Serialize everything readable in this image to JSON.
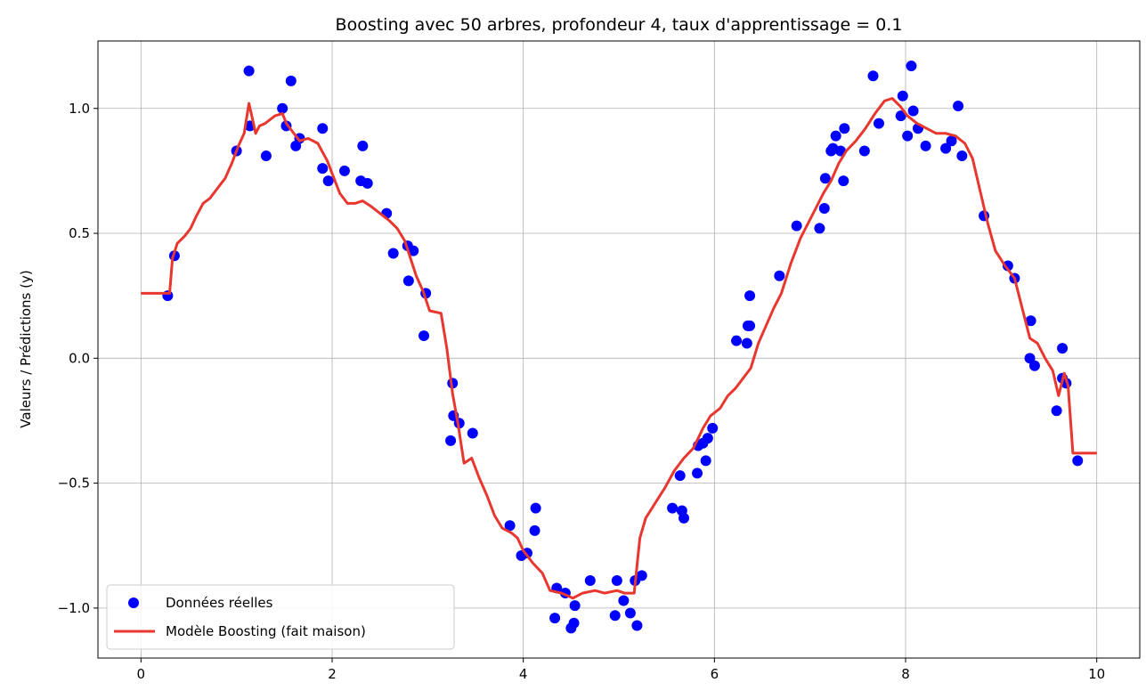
{
  "chart_data": {
    "type": "scatter",
    "title": "Boosting avec 50 arbres, profondeur 4, taux d'apprentissage = 0.1",
    "xlabel": "",
    "ylabel": "Valeurs / Prédictions (y)",
    "xlim": [
      -0.45,
      10.45
    ],
    "ylim": [
      -1.2,
      1.27
    ],
    "xticks": [
      0,
      2,
      4,
      6,
      8,
      10
    ],
    "xtick_labels": [
      "0",
      "2",
      "4",
      "6",
      "8",
      "10"
    ],
    "yticks": [
      -1.0,
      -0.5,
      0.0,
      0.5,
      1.0
    ],
    "ytick_labels": [
      "−1.0",
      "−0.5",
      "0.0",
      "0.5",
      "1.0"
    ],
    "grid": true,
    "legend_position": "lower-left",
    "series": [
      {
        "name": "Données réelles",
        "kind": "scatter",
        "color": "#0000ff",
        "points": [
          [
            0.28,
            0.25
          ],
          [
            0.35,
            0.41
          ],
          [
            1.0,
            0.83
          ],
          [
            1.13,
            1.15
          ],
          [
            1.14,
            0.93
          ],
          [
            1.31,
            0.81
          ],
          [
            1.48,
            1.0
          ],
          [
            1.52,
            0.93
          ],
          [
            1.57,
            1.11
          ],
          [
            1.62,
            0.85
          ],
          [
            1.66,
            0.88
          ],
          [
            1.9,
            0.92
          ],
          [
            1.9,
            0.76
          ],
          [
            1.96,
            0.71
          ],
          [
            2.13,
            0.75
          ],
          [
            2.3,
            0.71
          ],
          [
            2.32,
            0.85
          ],
          [
            2.37,
            0.7
          ],
          [
            2.57,
            0.58
          ],
          [
            2.64,
            0.42
          ],
          [
            2.79,
            0.45
          ],
          [
            2.8,
            0.31
          ],
          [
            2.85,
            0.43
          ],
          [
            2.96,
            0.09
          ],
          [
            2.98,
            0.26
          ],
          [
            3.24,
            -0.33
          ],
          [
            3.26,
            -0.1
          ],
          [
            3.27,
            -0.23
          ],
          [
            3.33,
            -0.26
          ],
          [
            3.47,
            -0.3
          ],
          [
            3.86,
            -0.67
          ],
          [
            3.98,
            -0.79
          ],
          [
            4.04,
            -0.78
          ],
          [
            4.12,
            -0.69
          ],
          [
            4.13,
            -0.6
          ],
          [
            4.33,
            -1.04
          ],
          [
            4.35,
            -0.92
          ],
          [
            4.44,
            -0.94
          ],
          [
            4.5,
            -1.08
          ],
          [
            4.53,
            -1.06
          ],
          [
            4.54,
            -0.99
          ],
          [
            4.7,
            -0.89
          ],
          [
            4.96,
            -1.03
          ],
          [
            4.98,
            -0.89
          ],
          [
            5.05,
            -0.97
          ],
          [
            5.12,
            -1.02
          ],
          [
            5.17,
            -0.89
          ],
          [
            5.19,
            -1.07
          ],
          [
            5.24,
            -0.87
          ],
          [
            5.56,
            -0.6
          ],
          [
            5.64,
            -0.47
          ],
          [
            5.66,
            -0.61
          ],
          [
            5.68,
            -0.64
          ],
          [
            5.82,
            -0.46
          ],
          [
            5.83,
            -0.35
          ],
          [
            5.88,
            -0.34
          ],
          [
            5.91,
            -0.41
          ],
          [
            5.93,
            -0.32
          ],
          [
            5.98,
            -0.28
          ],
          [
            6.23,
            0.07
          ],
          [
            6.34,
            0.06
          ],
          [
            6.35,
            0.13
          ],
          [
            6.37,
            0.25
          ],
          [
            6.37,
            0.13
          ],
          [
            6.68,
            0.33
          ],
          [
            6.86,
            0.53
          ],
          [
            7.1,
            0.52
          ],
          [
            7.15,
            0.6
          ],
          [
            7.16,
            0.72
          ],
          [
            7.22,
            0.83
          ],
          [
            7.24,
            0.84
          ],
          [
            7.27,
            0.89
          ],
          [
            7.32,
            0.83
          ],
          [
            7.35,
            0.71
          ],
          [
            7.36,
            0.92
          ],
          [
            7.57,
            0.83
          ],
          [
            7.66,
            1.13
          ],
          [
            7.72,
            0.94
          ],
          [
            7.95,
            0.97
          ],
          [
            7.97,
            1.05
          ],
          [
            8.02,
            0.89
          ],
          [
            8.06,
            1.17
          ],
          [
            8.08,
            0.99
          ],
          [
            8.13,
            0.92
          ],
          [
            8.21,
            0.85
          ],
          [
            8.42,
            0.84
          ],
          [
            8.48,
            0.87
          ],
          [
            8.55,
            1.01
          ],
          [
            8.59,
            0.81
          ],
          [
            8.82,
            0.57
          ],
          [
            9.07,
            0.37
          ],
          [
            9.14,
            0.32
          ],
          [
            9.3,
            0.0
          ],
          [
            9.31,
            0.15
          ],
          [
            9.35,
            -0.03
          ],
          [
            9.58,
            -0.21
          ],
          [
            9.64,
            0.04
          ],
          [
            9.64,
            -0.08
          ],
          [
            9.68,
            -0.1
          ],
          [
            9.8,
            -0.41
          ]
        ]
      },
      {
        "name": "Modèle Boosting (fait maison)",
        "kind": "line",
        "color": "#e8372f",
        "points": [
          [
            0.0,
            0.26
          ],
          [
            0.3,
            0.26
          ],
          [
            0.33,
            0.4
          ],
          [
            0.38,
            0.46
          ],
          [
            0.46,
            0.49
          ],
          [
            0.52,
            0.52
          ],
          [
            0.58,
            0.57
          ],
          [
            0.65,
            0.62
          ],
          [
            0.72,
            0.64
          ],
          [
            0.8,
            0.68
          ],
          [
            0.88,
            0.72
          ],
          [
            0.95,
            0.78
          ],
          [
            1.02,
            0.85
          ],
          [
            1.08,
            0.9
          ],
          [
            1.1,
            0.95
          ],
          [
            1.13,
            1.02
          ],
          [
            1.16,
            0.97
          ],
          [
            1.2,
            0.9
          ],
          [
            1.24,
            0.93
          ],
          [
            1.3,
            0.94
          ],
          [
            1.4,
            0.97
          ],
          [
            1.48,
            0.98
          ],
          [
            1.52,
            0.94
          ],
          [
            1.58,
            0.91
          ],
          [
            1.66,
            0.87
          ],
          [
            1.75,
            0.88
          ],
          [
            1.85,
            0.86
          ],
          [
            1.95,
            0.79
          ],
          [
            2.02,
            0.72
          ],
          [
            2.08,
            0.66
          ],
          [
            2.16,
            0.62
          ],
          [
            2.24,
            0.62
          ],
          [
            2.32,
            0.63
          ],
          [
            2.4,
            0.61
          ],
          [
            2.5,
            0.58
          ],
          [
            2.6,
            0.55
          ],
          [
            2.68,
            0.52
          ],
          [
            2.76,
            0.47
          ],
          [
            2.82,
            0.4
          ],
          [
            2.88,
            0.33
          ],
          [
            2.95,
            0.27
          ],
          [
            3.02,
            0.19
          ],
          [
            3.14,
            0.18
          ],
          [
            3.2,
            0.04
          ],
          [
            3.26,
            -0.14
          ],
          [
            3.32,
            -0.27
          ],
          [
            3.38,
            -0.42
          ],
          [
            3.46,
            -0.4
          ],
          [
            3.54,
            -0.48
          ],
          [
            3.62,
            -0.55
          ],
          [
            3.7,
            -0.63
          ],
          [
            3.78,
            -0.68
          ],
          [
            3.88,
            -0.7
          ],
          [
            3.94,
            -0.72
          ],
          [
            4.0,
            -0.77
          ],
          [
            4.1,
            -0.82
          ],
          [
            4.2,
            -0.86
          ],
          [
            4.28,
            -0.93
          ],
          [
            4.4,
            -0.94
          ],
          [
            4.52,
            -0.96
          ],
          [
            4.62,
            -0.94
          ],
          [
            4.75,
            -0.93
          ],
          [
            4.85,
            -0.94
          ],
          [
            4.98,
            -0.93
          ],
          [
            5.06,
            -0.94
          ],
          [
            5.16,
            -0.94
          ],
          [
            5.22,
            -0.72
          ],
          [
            5.28,
            -0.64
          ],
          [
            5.38,
            -0.58
          ],
          [
            5.48,
            -0.52
          ],
          [
            5.58,
            -0.45
          ],
          [
            5.68,
            -0.4
          ],
          [
            5.78,
            -0.36
          ],
          [
            5.88,
            -0.28
          ],
          [
            5.96,
            -0.23
          ],
          [
            6.06,
            -0.2
          ],
          [
            6.14,
            -0.15
          ],
          [
            6.22,
            -0.12
          ],
          [
            6.3,
            -0.08
          ],
          [
            6.38,
            -0.04
          ],
          [
            6.46,
            0.06
          ],
          [
            6.54,
            0.13
          ],
          [
            6.62,
            0.2
          ],
          [
            6.7,
            0.26
          ],
          [
            6.8,
            0.38
          ],
          [
            6.9,
            0.48
          ],
          [
            6.98,
            0.54
          ],
          [
            7.06,
            0.6
          ],
          [
            7.14,
            0.66
          ],
          [
            7.22,
            0.71
          ],
          [
            7.3,
            0.78
          ],
          [
            7.38,
            0.83
          ],
          [
            7.48,
            0.87
          ],
          [
            7.58,
            0.92
          ],
          [
            7.68,
            0.98
          ],
          [
            7.78,
            1.03
          ],
          [
            7.86,
            1.04
          ],
          [
            7.94,
            1.01
          ],
          [
            8.02,
            0.97
          ],
          [
            8.12,
            0.94
          ],
          [
            8.22,
            0.92
          ],
          [
            8.32,
            0.9
          ],
          [
            8.42,
            0.9
          ],
          [
            8.52,
            0.89
          ],
          [
            8.62,
            0.86
          ],
          [
            8.7,
            0.8
          ],
          [
            8.78,
            0.67
          ],
          [
            8.86,
            0.54
          ],
          [
            8.94,
            0.43
          ],
          [
            9.04,
            0.37
          ],
          [
            9.14,
            0.32
          ],
          [
            9.22,
            0.2
          ],
          [
            9.3,
            0.08
          ],
          [
            9.38,
            0.06
          ],
          [
            9.46,
            0.0
          ],
          [
            9.54,
            -0.05
          ],
          [
            9.6,
            -0.15
          ],
          [
            9.66,
            -0.06
          ],
          [
            9.7,
            -0.11
          ],
          [
            9.75,
            -0.38
          ],
          [
            10.0,
            -0.38
          ]
        ]
      }
    ]
  }
}
